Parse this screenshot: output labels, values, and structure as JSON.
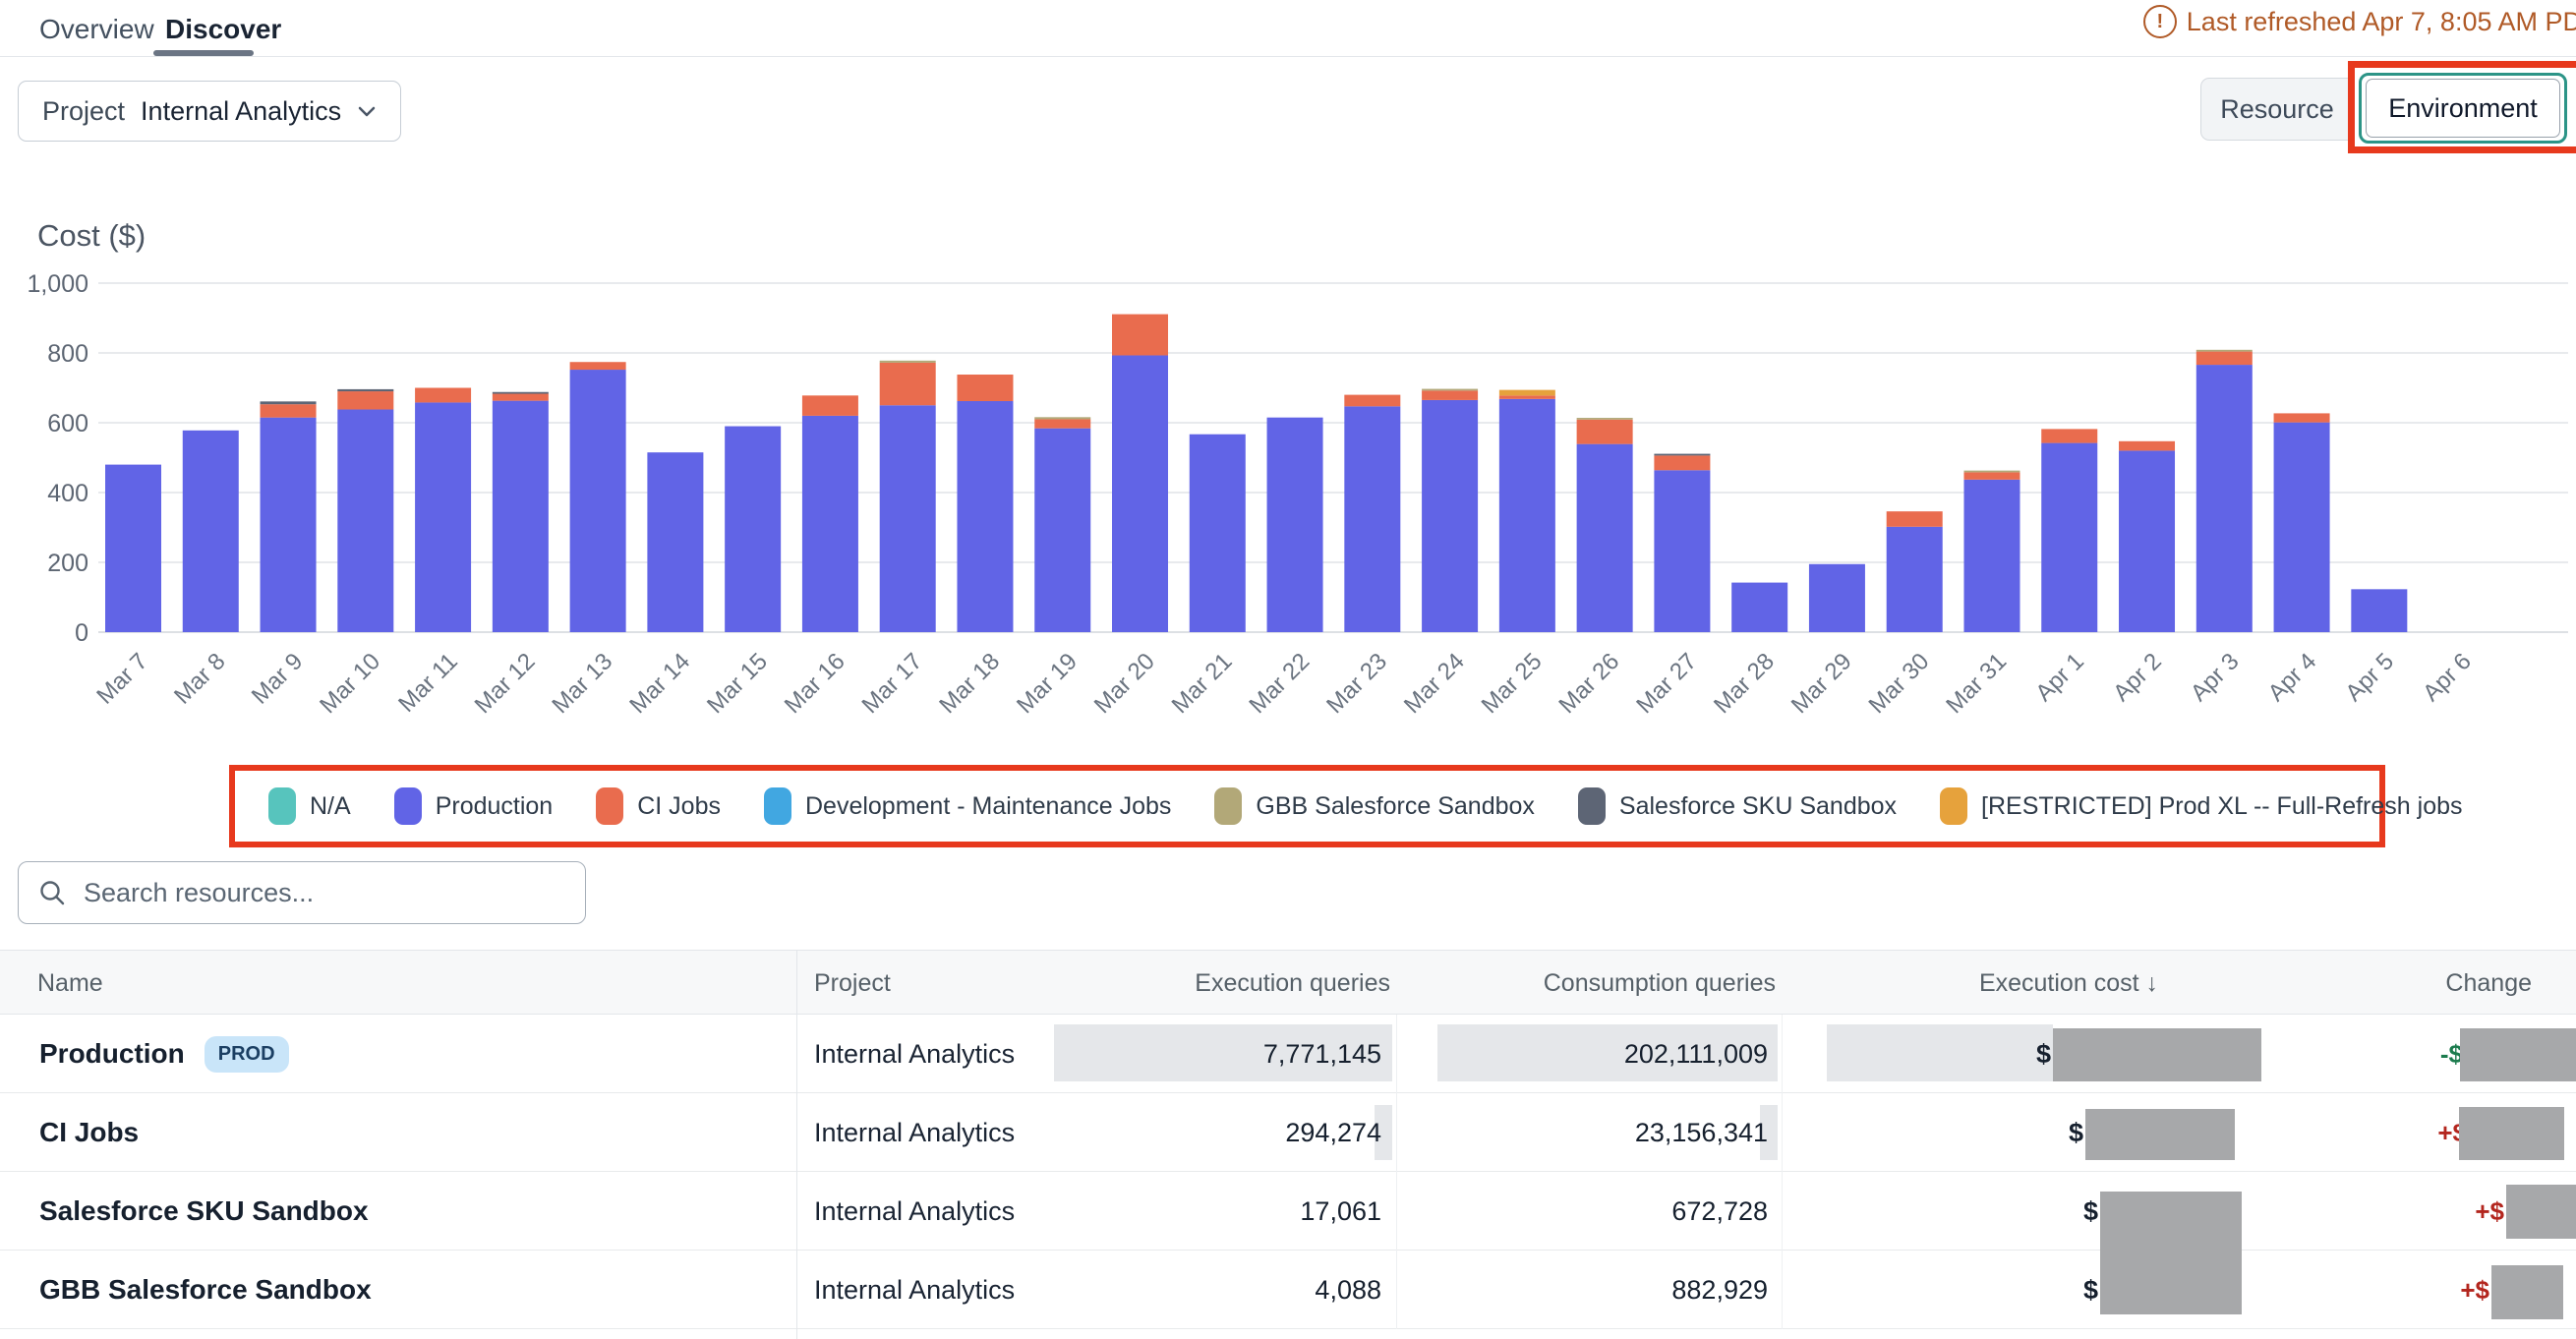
{
  "tabs": {
    "overview": "Overview",
    "discover": "Discover"
  },
  "refresh_notice": "Last refreshed Apr 7, 8:05 AM PD",
  "filters": {
    "project_label": "Project",
    "project_value": "Internal Analytics"
  },
  "group_toggle": {
    "resource": "Resource",
    "environment": "Environment"
  },
  "annotation_color": "#e7391d",
  "chart_data": {
    "type": "bar",
    "stacked": true,
    "title": "Cost ($)",
    "ylim": [
      0,
      1000
    ],
    "yticks": [
      0,
      200,
      400,
      600,
      800,
      1000
    ],
    "ytick_labels": [
      "0",
      "200",
      "400",
      "600",
      "800",
      "1,000"
    ],
    "grid": true,
    "legend_position": "bottom",
    "categories": [
      "Mar 7",
      "Mar 8",
      "Mar 9",
      "Mar 10",
      "Mar 11",
      "Mar 12",
      "Mar 13",
      "Mar 14",
      "Mar 15",
      "Mar 16",
      "Mar 17",
      "Mar 18",
      "Mar 19",
      "Mar 20",
      "Mar 21",
      "Mar 22",
      "Mar 23",
      "Mar 24",
      "Mar 25",
      "Mar 26",
      "Mar 27",
      "Mar 28",
      "Mar 29",
      "Mar 30",
      "Mar 31",
      "Apr 1",
      "Apr 2",
      "Apr 3",
      "Apr 4",
      "Apr 5",
      "Apr 6"
    ],
    "legend": [
      {
        "name": "N/A",
        "color": "#57c4bd"
      },
      {
        "name": "Production",
        "color": "#6164e6"
      },
      {
        "name": "CI Jobs",
        "color": "#e96c4e"
      },
      {
        "name": "Development - Maintenance Jobs",
        "color": "#41a7e1"
      },
      {
        "name": "GBB Salesforce Sandbox",
        "color": "#b2a878"
      },
      {
        "name": "Salesforce SKU Sandbox",
        "color": "#5d6575"
      },
      {
        "name": "[RESTRICTED] Prod XL -- Full-Refresh jobs",
        "color": "#e6a23c"
      }
    ],
    "series": [
      {
        "name": "Production",
        "color": "#6164e6",
        "values": [
          480,
          578,
          615,
          638,
          658,
          663,
          752,
          515,
          590,
          620,
          650,
          662,
          584,
          793,
          567,
          615,
          647,
          665,
          668,
          539,
          464,
          142,
          195,
          302,
          437,
          542,
          520,
          766,
          601,
          123,
          0
        ]
      },
      {
        "name": "CI Jobs",
        "color": "#e96c4e",
        "values": [
          0,
          0,
          38,
          52,
          42,
          20,
          22,
          0,
          0,
          58,
          122,
          76,
          26,
          118,
          0,
          0,
          33,
          27,
          10,
          70,
          42,
          0,
          0,
          44,
          21,
          40,
          27,
          38,
          26,
          0,
          0
        ]
      },
      {
        "name": "Development - Maintenance Jobs",
        "color": "#41a7e1",
        "values": [
          0,
          0,
          0,
          0,
          0,
          0,
          0,
          0,
          0,
          0,
          0,
          0,
          0,
          0,
          0,
          0,
          0,
          0,
          0,
          0,
          0,
          0,
          0,
          0,
          0,
          0,
          0,
          0,
          0,
          0,
          0
        ]
      },
      {
        "name": "GBB Salesforce Sandbox",
        "color": "#b2a878",
        "values": [
          0,
          0,
          0,
          0,
          0,
          0,
          0,
          0,
          0,
          0,
          6,
          0,
          6,
          0,
          0,
          0,
          0,
          5,
          0,
          5,
          0,
          0,
          0,
          0,
          5,
          0,
          0,
          5,
          0,
          0,
          0
        ]
      },
      {
        "name": "Salesforce SKU Sandbox",
        "color": "#5d6575",
        "values": [
          0,
          0,
          8,
          6,
          0,
          5,
          0,
          0,
          0,
          0,
          0,
          0,
          0,
          0,
          0,
          0,
          0,
          0,
          0,
          0,
          5,
          0,
          0,
          0,
          0,
          0,
          0,
          0,
          0,
          0,
          0
        ]
      },
      {
        "name": "[RESTRICTED] Prod XL -- Full-Refresh jobs",
        "color": "#e6a23c",
        "values": [
          0,
          0,
          0,
          0,
          0,
          0,
          0,
          0,
          0,
          0,
          0,
          0,
          0,
          0,
          0,
          0,
          0,
          0,
          16,
          0,
          0,
          0,
          0,
          0,
          0,
          0,
          0,
          0,
          0,
          0,
          0
        ]
      },
      {
        "name": "N/A",
        "color": "#57c4bd",
        "values": [
          0,
          0,
          0,
          0,
          0,
          0,
          0,
          0,
          0,
          0,
          0,
          0,
          0,
          0,
          0,
          0,
          0,
          0,
          0,
          0,
          0,
          0,
          0,
          0,
          0,
          0,
          0,
          0,
          0,
          0,
          0
        ]
      }
    ]
  },
  "search": {
    "placeholder": "Search resources..."
  },
  "table": {
    "columns": [
      "Name",
      "Project",
      "Execution queries",
      "Consumption queries",
      "Execution cost",
      "Change"
    ],
    "sort_column": "Execution cost",
    "sort_icon": "↓",
    "rows": [
      {
        "name": "Production",
        "badge": "PROD",
        "project": "Internal Analytics",
        "execution_queries": "7,771,145",
        "consumption_queries": "202,111,009",
        "execution_cost": "$",
        "change": "-$",
        "change_direction": "down"
      },
      {
        "name": "CI Jobs",
        "badge": "",
        "project": "Internal Analytics",
        "execution_queries": "294,274",
        "consumption_queries": "23,156,341",
        "execution_cost": "$",
        "change": "+$",
        "change_direction": "up"
      },
      {
        "name": "Salesforce SKU Sandbox",
        "badge": "",
        "project": "Internal Analytics",
        "execution_queries": "17,061",
        "consumption_queries": "672,728",
        "execution_cost": "$",
        "change": "+$",
        "change_direction": "up"
      },
      {
        "name": "GBB Salesforce Sandbox",
        "badge": "",
        "project": "Internal Analytics",
        "execution_queries": "4,088",
        "consumption_queries": "882,929",
        "execution_cost": "$",
        "change": "+$",
        "change_direction": "up"
      }
    ]
  }
}
